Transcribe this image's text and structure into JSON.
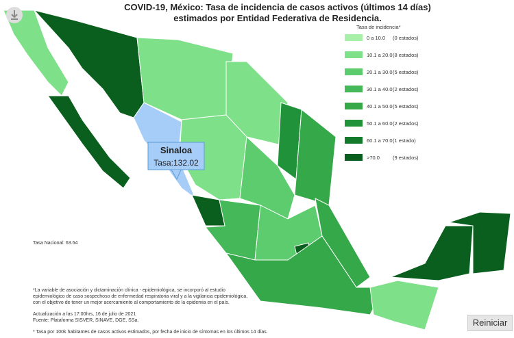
{
  "header": {
    "title_lines": [
      "COVID-19, México: Tasa de incidencia de casos activos (últimos 14 días)",
      "estimados por Entidad Federativa de Residencia."
    ]
  },
  "legend": {
    "title": "Tasa de incidencia*",
    "items": [
      {
        "label": "0 a 10.0",
        "count": "(0 estados)",
        "color": "#a8f0a8"
      },
      {
        "label": "10.1 a 20.0",
        "count": "(8 estados)",
        "color": "#7fe08a"
      },
      {
        "label": "20.1 a 30.0",
        "count": "(5 estados)",
        "color": "#5ccc6e"
      },
      {
        "label": "30.1 a 40.0",
        "count": "(2 estados)",
        "color": "#45b85a"
      },
      {
        "label": "40.1 a 50.0",
        "count": "(5 estados)",
        "color": "#35a84a"
      },
      {
        "label": "50.1 a 60.0",
        "count": "(2 estados)",
        "color": "#20923a"
      },
      {
        "label": "60.1 a 70.0",
        "count": "(1 estado)",
        "color": "#137a2c"
      },
      {
        "label": ">70.0",
        "count": "(9 estados)",
        "color": "#0a5e1e"
      }
    ]
  },
  "tooltip": {
    "name": "Sinaloa",
    "text": "Tasa:132.02"
  },
  "national_rate": "Tasa Nacional: 63.64",
  "footnotes": {
    "lines": [
      "*La variable de asociación y dictaminación clínica - epidemiológica, se incorporó al estudio",
      "epidemiológico de caso sospechoso de enfermedad respiratoria viral y a la vigilancia epidemiológica,",
      "con el objetivo de tener un mejor acercamiento al comportamiento de la epidemia en el país."
    ],
    "update": "Actualización a las 17:00hrs, 16 de julio de 2021",
    "source": "Fuente: Plataforma SISVER, SINAVE, DGE, SSa.",
    "note": "* Tasa por 100k habitantes de casos activos estimados, por fecha de inicio de síntomas en los últimos 14 días."
  },
  "button": "Reiniciar"
}
